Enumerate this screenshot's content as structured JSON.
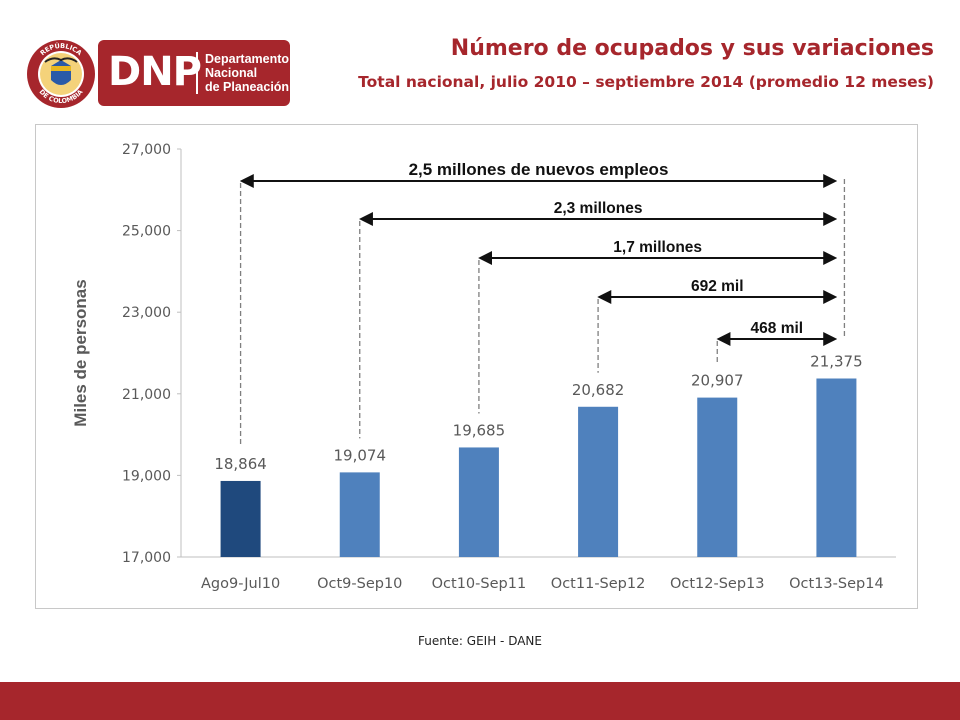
{
  "header": {
    "title": "Número de ocupados y sus variaciones",
    "subtitle": "Total nacional, julio 2010 – septiembre 2014 (promedio 12 meses)"
  },
  "logo": {
    "seal_text_top": "REPÚBLICA",
    "seal_text_bottom": "DE COLOMBIA",
    "acronym": "DNP",
    "words": [
      "Departamento",
      "Nacional",
      "de Planeación"
    ]
  },
  "source": "Fuente: GEIH - DANE",
  "colors": {
    "brand": "#a6262c",
    "bar": "#4f81bd",
    "bar_highlight": "#1f497d",
    "axis_text": "#595959"
  },
  "chart_data": {
    "type": "bar",
    "ylabel": "Miles de personas",
    "ylim": [
      17000,
      27000
    ],
    "yticks": [
      "17,000",
      "19,000",
      "21,000",
      "23,000",
      "25,000",
      "27,000"
    ],
    "ytick_values": [
      17000,
      19000,
      21000,
      23000,
      25000,
      27000
    ],
    "categories": [
      "Ago9-Jul10",
      "Oct9-Sep10",
      "Oct10-Sep11",
      "Oct11-Sep12",
      "Oct12-Sep13",
      "Oct13-Sep14"
    ],
    "values": [
      18864,
      19074,
      19685,
      20682,
      20907,
      21375
    ],
    "value_labels": [
      "18,864",
      "19,074",
      "19,685",
      "20,682",
      "20,907",
      "21,375"
    ],
    "annotations": [
      {
        "text": "2,5 millones de nuevos empleos",
        "from": 0,
        "to": 5
      },
      {
        "text": "2,3 millones",
        "from": 1,
        "to": 5
      },
      {
        "text": "1,7 millones",
        "from": 2,
        "to": 5
      },
      {
        "text": "692 mil",
        "from": 3,
        "to": 5
      },
      {
        "text": "468 mil",
        "from": 4,
        "to": 5
      }
    ]
  }
}
